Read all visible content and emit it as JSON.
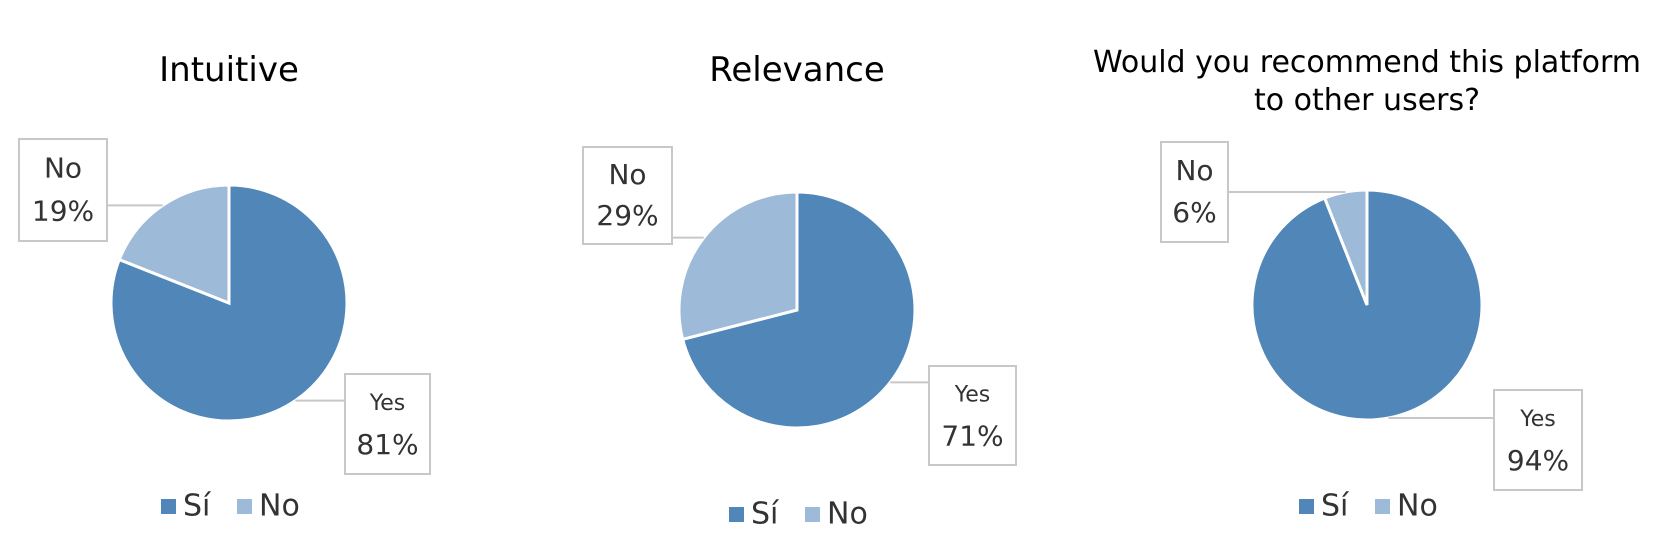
{
  "chart_data": [
    {
      "type": "pie",
      "title": "Intuitive",
      "categories": [
        "Sí",
        "No"
      ],
      "values": [
        81,
        19
      ],
      "value_labels": [
        "81%",
        "19%"
      ],
      "data_label_names": [
        "Yes",
        "No"
      ],
      "colors": [
        "#5086b8",
        "#9dbad9"
      ]
    },
    {
      "type": "pie",
      "title": "Relevance",
      "categories": [
        "Sí",
        "No"
      ],
      "values": [
        71,
        29
      ],
      "value_labels": [
        "71%",
        "29%"
      ],
      "data_label_names": [
        "Yes",
        "No"
      ],
      "colors": [
        "#5086b8",
        "#9dbad9"
      ]
    },
    {
      "type": "pie",
      "title": "Would you recommend this platform to other users?",
      "categories": [
        "Sí",
        "No"
      ],
      "values": [
        94,
        6
      ],
      "value_labels": [
        "94%",
        "6%"
      ],
      "data_label_names": [
        "Yes",
        "No"
      ],
      "colors": [
        "#5086b8",
        "#9dbad9"
      ]
    }
  ]
}
